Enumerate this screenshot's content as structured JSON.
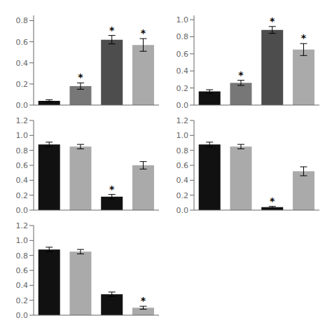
{
  "chart_data": [
    {
      "type": "bar",
      "categories": [
        null,
        null,
        null,
        null
      ],
      "values": [
        0.04,
        0.18,
        0.62,
        0.57
      ],
      "errors": [
        0.01,
        0.03,
        0.04,
        0.06
      ],
      "colors": [
        "#111111",
        "#777777",
        "#4d4d4d",
        "#aaaaaa"
      ],
      "annotations": [
        null,
        "*",
        "*",
        "*"
      ],
      "ylim": [
        0,
        0.85
      ],
      "yticks": [
        {
          "value": 0,
          "label": "0.0"
        },
        0.2,
        0.4,
        0.6,
        0.8
      ],
      "grid": false,
      "tick_labels": "y"
    },
    {
      "type": "bar",
      "categories": [
        null,
        null,
        null,
        null
      ],
      "values": [
        0.16,
        0.26,
        0.88,
        0.65
      ],
      "errors": [
        0.02,
        0.03,
        0.04,
        0.07
      ],
      "colors": [
        "#111111",
        "#777777",
        "#4d4d4d",
        "#aaaaaa"
      ],
      "annotations": [
        null,
        "*",
        "*",
        "*"
      ],
      "ylim": [
        0,
        1.05
      ],
      "yticks": [
        {
          "value": 0,
          "label": "0.0"
        },
        0.2,
        0.4,
        0.6,
        0.8,
        {
          "value": 1,
          "label": "1.0"
        }
      ],
      "grid": false,
      "tick_labels": "y"
    },
    {
      "type": "bar",
      "categories": [
        null,
        null,
        null,
        null
      ],
      "values": [
        0.88,
        0.85,
        0.18,
        0.6
      ],
      "errors": [
        0.03,
        0.03,
        0.03,
        0.05
      ],
      "colors": [
        "#111111",
        "#aaaaaa",
        "#111111",
        "#aaaaaa"
      ],
      "annotations": [
        null,
        null,
        "*",
        null
      ],
      "ylim": [
        0,
        1.2
      ],
      "yticks": [
        {
          "value": 0,
          "label": "0.0"
        },
        0.2,
        0.4,
        0.6,
        0.8,
        {
          "value": 1,
          "label": "1.0"
        },
        1.2
      ],
      "grid": false,
      "tick_labels": "y"
    },
    {
      "type": "bar",
      "categories": [
        null,
        null,
        null,
        null
      ],
      "values": [
        0.88,
        0.85,
        0.04,
        0.52
      ],
      "errors": [
        0.03,
        0.03,
        0.01,
        0.06
      ],
      "colors": [
        "#111111",
        "#aaaaaa",
        "#111111",
        "#aaaaaa"
      ],
      "annotations": [
        null,
        null,
        "*",
        null
      ],
      "ylim": [
        0,
        1.2
      ],
      "yticks": [
        {
          "value": 0,
          "label": "0.0"
        },
        0.2,
        0.4,
        0.6,
        0.8,
        {
          "value": 1,
          "label": "1.0"
        },
        1.2
      ],
      "grid": false,
      "tick_labels": "y"
    },
    {
      "type": "bar",
      "categories": [
        null,
        null,
        null,
        null
      ],
      "values": [
        0.88,
        0.85,
        0.28,
        0.1
      ],
      "errors": [
        0.03,
        0.03,
        0.03,
        0.02
      ],
      "colors": [
        "#111111",
        "#aaaaaa",
        "#111111",
        "#aaaaaa"
      ],
      "annotations": [
        null,
        null,
        null,
        "*"
      ],
      "ylim": [
        0,
        1.2
      ],
      "yticks": [
        {
          "value": 0,
          "label": "0.0"
        },
        0.2,
        0.4,
        0.6,
        0.8,
        {
          "value": 1,
          "label": "1.0"
        },
        1.2
      ],
      "grid": false,
      "tick_labels": "y"
    }
  ]
}
